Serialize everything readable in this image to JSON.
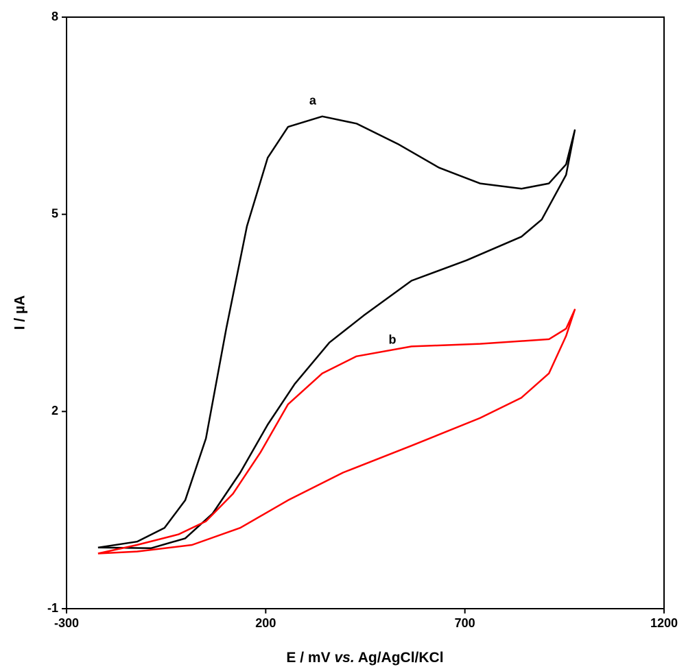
{
  "chart_data": {
    "type": "line",
    "xlabel": [
      "E / mV",
      "vs.",
      "Ag/AgCl/KCl"
    ],
    "ylabel": "I / µA",
    "xlim": [
      -300,
      1200
    ],
    "xticks": [
      -300,
      200,
      700,
      1200
    ],
    "ylim": [
      -1,
      8
    ],
    "yticks": [
      -1,
      2,
      5,
      8
    ],
    "series": [
      {
        "name": "a",
        "color": "#000000",
        "x": [
          -221,
          -123,
          -54,
          -2,
          50,
          101,
          153,
          205,
          256,
          342,
          428,
          532,
          635,
          738,
          842,
          911,
          954,
          976,
          954,
          893,
          842,
          704,
          566,
          446,
          360,
          273,
          205,
          136,
          67,
          -2,
          -88,
          -221
        ],
        "values": [
          -0.07,
          0.02,
          0.23,
          0.65,
          1.59,
          3.26,
          4.82,
          5.86,
          6.33,
          6.49,
          6.38,
          6.07,
          5.71,
          5.47,
          5.39,
          5.47,
          5.76,
          6.28,
          5.6,
          4.92,
          4.66,
          4.3,
          3.99,
          3.46,
          3.05,
          2.42,
          1.8,
          1.07,
          0.45,
          0.07,
          -0.08,
          -0.07
        ]
      },
      {
        "name": "b",
        "color": "#ff0000",
        "x": [
          -221,
          -123,
          -19,
          50,
          118,
          187,
          256,
          342,
          428,
          566,
          738,
          911,
          954,
          976,
          954,
          911,
          842,
          738,
          566,
          394,
          256,
          136,
          15,
          -123,
          -221
        ],
        "values": [
          -0.16,
          -0.03,
          0.13,
          0.33,
          0.75,
          1.38,
          2.11,
          2.58,
          2.84,
          2.99,
          3.03,
          3.1,
          3.26,
          3.55,
          3.15,
          2.58,
          2.21,
          1.9,
          1.48,
          1.07,
          0.65,
          0.23,
          -0.03,
          -0.13,
          -0.16
        ]
      }
    ],
    "annotations": [
      {
        "text": "a",
        "x": 318,
        "y": 6.72
      },
      {
        "text": "b",
        "x": 518,
        "y": 3.08
      }
    ]
  }
}
